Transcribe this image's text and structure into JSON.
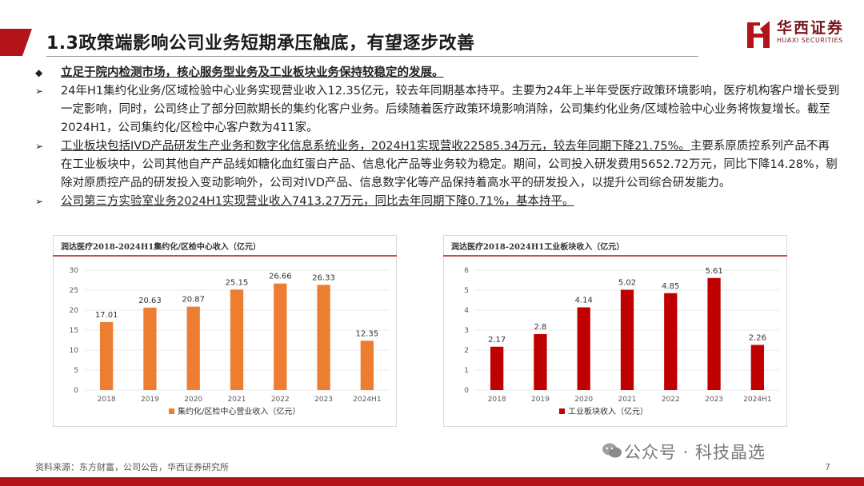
{
  "page": {
    "title": "1.3政策端影响公司业务短期承压触底，有望逐步改善",
    "logo_cn": "华西证券",
    "logo_en": "HUAXI SECURITIES",
    "source": "资料来源：东方财富，公司公告，华西证券研究所",
    "watermark": "公众号 · 科技晶选",
    "page_number": "7"
  },
  "bullets": {
    "main": "立足于院内检测市场，核心服务型业务及工业板块业务保持较稳定的发展。",
    "main_symbol": "◆",
    "sub_symbol": "➢",
    "b1": "24年H1集约化业务/区域检验中心业务实现营业收入12.35亿元，较去年同期基本持平。主要为24年上半年受医疗政策环境影响，医疗机构客户增长受到一定影响，同时，公司终止了部分回款期长的集约化客户业务。后续随着医疗政策环境影响消除，公司集约化业务/区域检验中心业务将恢复增长。截至2024H1，公司集约化/区检中心客户数为411家。",
    "b2_underlined": "工业板块包括IVD产品研发生产业务和数字化信息系统业务，2024H1实现营收22585.34万元，较去年同期下降21.75%。",
    "b2_rest": "主要系原质控系列产品不再在工业板块中，公司其他自产产品线如糖化血红蛋白产品、信息化产品等业务较为稳定。期间，公司投入研发费用5652.72万元，同比下降14.28%，剔除对原质控产品的研发投入变动影响外，公司对IVD产品、信息数字化等产品保持着高水平的研发投入，以提升公司综合研发能力。",
    "b3": "公司第三方实验室业务2024H1实现营业收入7413.27万元，同比去年同期下降0.71%，基本持平。"
  },
  "chart_data": [
    {
      "type": "bar",
      "title": "润达医疗2018-2024H1集约化/区检中心收入（亿元）",
      "categories": [
        "2018",
        "2019",
        "2020",
        "2021",
        "2022",
        "2023",
        "2024H1"
      ],
      "series": [
        {
          "name": "集约化/区检中心营业收入（亿元）",
          "values": [
            17.01,
            20.63,
            20.87,
            25.15,
            26.66,
            26.33,
            12.35
          ]
        }
      ],
      "data_labels": [
        "17.01",
        "20.63",
        "20.87",
        "25.15",
        "26.66",
        "26.33",
        "12.35"
      ],
      "yticks": [
        "0",
        "5",
        "10",
        "15",
        "20",
        "25",
        "30"
      ],
      "ylim": [
        0,
        30
      ],
      "color": "#ED7D31",
      "grid": true,
      "legend": "bottom"
    },
    {
      "type": "bar",
      "title": "润达医疗2018-2024H1工业板块收入（亿元）",
      "categories": [
        "2018",
        "2019",
        "2020",
        "2021",
        "2022",
        "2023",
        "2024H1"
      ],
      "series": [
        {
          "name": "工业板块收入（亿元）",
          "values": [
            2.17,
            2.8,
            4.14,
            5.02,
            4.85,
            5.61,
            2.26
          ]
        }
      ],
      "data_labels": [
        "2.17",
        "2.8",
        "4.14",
        "5.02",
        "4.85",
        "5.61",
        "2.26"
      ],
      "yticks": [
        "0",
        "1",
        "2",
        "3",
        "4",
        "5",
        "6"
      ],
      "ylim": [
        0,
        6
      ],
      "color": "#C00000",
      "grid": true,
      "legend": "bottom"
    }
  ]
}
